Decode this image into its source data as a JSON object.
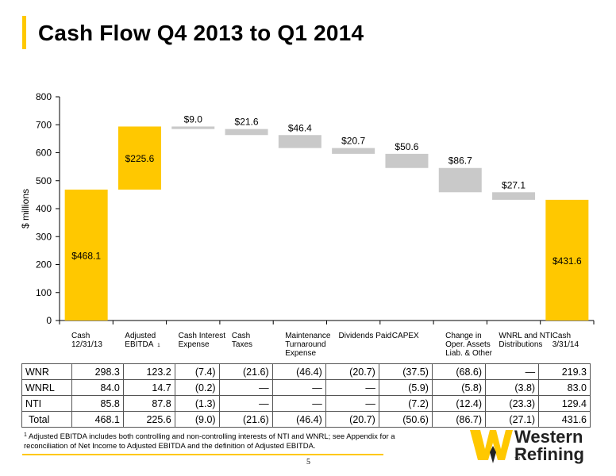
{
  "title": "Cash Flow Q4 2013 to Q1 2014",
  "colors": {
    "accent": "#FFC800",
    "decrease": "#C9C9C9",
    "text": "#000000"
  },
  "chart_data": {
    "type": "bar",
    "subtype": "waterfall",
    "ylabel": "$ millions",
    "ylim": [
      0,
      800
    ],
    "yticks": [
      "0",
      "100",
      "200",
      "300",
      "400",
      "500",
      "600",
      "700",
      "800"
    ],
    "categories": [
      [
        "Cash",
        "12/31/13"
      ],
      [
        "Adjusted",
        "EBITDA"
      ],
      [
        "Cash Interest",
        "Expense"
      ],
      [
        "Cash",
        "Taxes"
      ],
      [
        "Maintenance",
        "Turnaround",
        "Expense"
      ],
      [
        "Dividends Paid"
      ],
      [
        "CAPEX"
      ],
      [
        "Change in",
        "Oper. Assets",
        "Liab. & Other"
      ],
      [
        "WNRL and NTI",
        "Distributions"
      ],
      [
        "Cash",
        "3/31/14"
      ]
    ],
    "footnote_marker": "1",
    "bars": [
      {
        "start": 0,
        "end": 468.1,
        "kind": "total",
        "label": "$468.1"
      },
      {
        "start": 468.1,
        "end": 693.7,
        "kind": "increase",
        "label": "$225.6"
      },
      {
        "start": 693.7,
        "end": 684.7,
        "kind": "decrease",
        "label": "$9.0"
      },
      {
        "start": 684.7,
        "end": 663.1,
        "kind": "decrease",
        "label": "$21.6"
      },
      {
        "start": 663.1,
        "end": 616.7,
        "kind": "decrease",
        "label": "$46.4"
      },
      {
        "start": 616.7,
        "end": 596.0,
        "kind": "decrease",
        "label": "$20.7"
      },
      {
        "start": 596.0,
        "end": 545.4,
        "kind": "decrease",
        "label": "$50.6"
      },
      {
        "start": 545.4,
        "end": 458.7,
        "kind": "decrease",
        "label": "$86.7"
      },
      {
        "start": 458.7,
        "end": 431.6,
        "kind": "decrease",
        "label": "$27.1"
      },
      {
        "start": 0,
        "end": 431.6,
        "kind": "total",
        "label": "$431.6"
      }
    ]
  },
  "table": {
    "rows": [
      {
        "name": "WNR",
        "values": [
          "298.3",
          "123.2",
          "(7.4)",
          "(21.6)",
          "(46.4)",
          "(20.7)",
          "(37.5)",
          "(68.6)",
          "—",
          "219.3"
        ]
      },
      {
        "name": "WNRL",
        "values": [
          "84.0",
          "14.7",
          "(0.2)",
          "—",
          "—",
          "—",
          "(5.9)",
          "(5.8)",
          "(3.8)",
          "83.0"
        ]
      },
      {
        "name": "NTI",
        "values": [
          "85.8",
          "87.8",
          "(1.3)",
          "—",
          "—",
          "—",
          "(7.2)",
          "(12.4)",
          "(23.3)",
          "129.4"
        ]
      },
      {
        "name": "Total",
        "values": [
          "468.1",
          "225.6",
          "(9.0)",
          "(21.6)",
          "(46.4)",
          "(20.7)",
          "(50.6)",
          "(86.7)",
          "(27.1)",
          "431.6"
        ]
      }
    ]
  },
  "footnote": {
    "marker": "1",
    "text": "Adjusted EBITDA includes both controlling and non-controlling interests of NTI and WNRL; see Appendix for a reconciliation of Net Income to Adjusted EBITDA and the definition of Adjusted EBITDA."
  },
  "page_number": "5",
  "logo": {
    "line1": "Western",
    "line2": "Refining",
    "mark": "W",
    "tm": "TM"
  }
}
